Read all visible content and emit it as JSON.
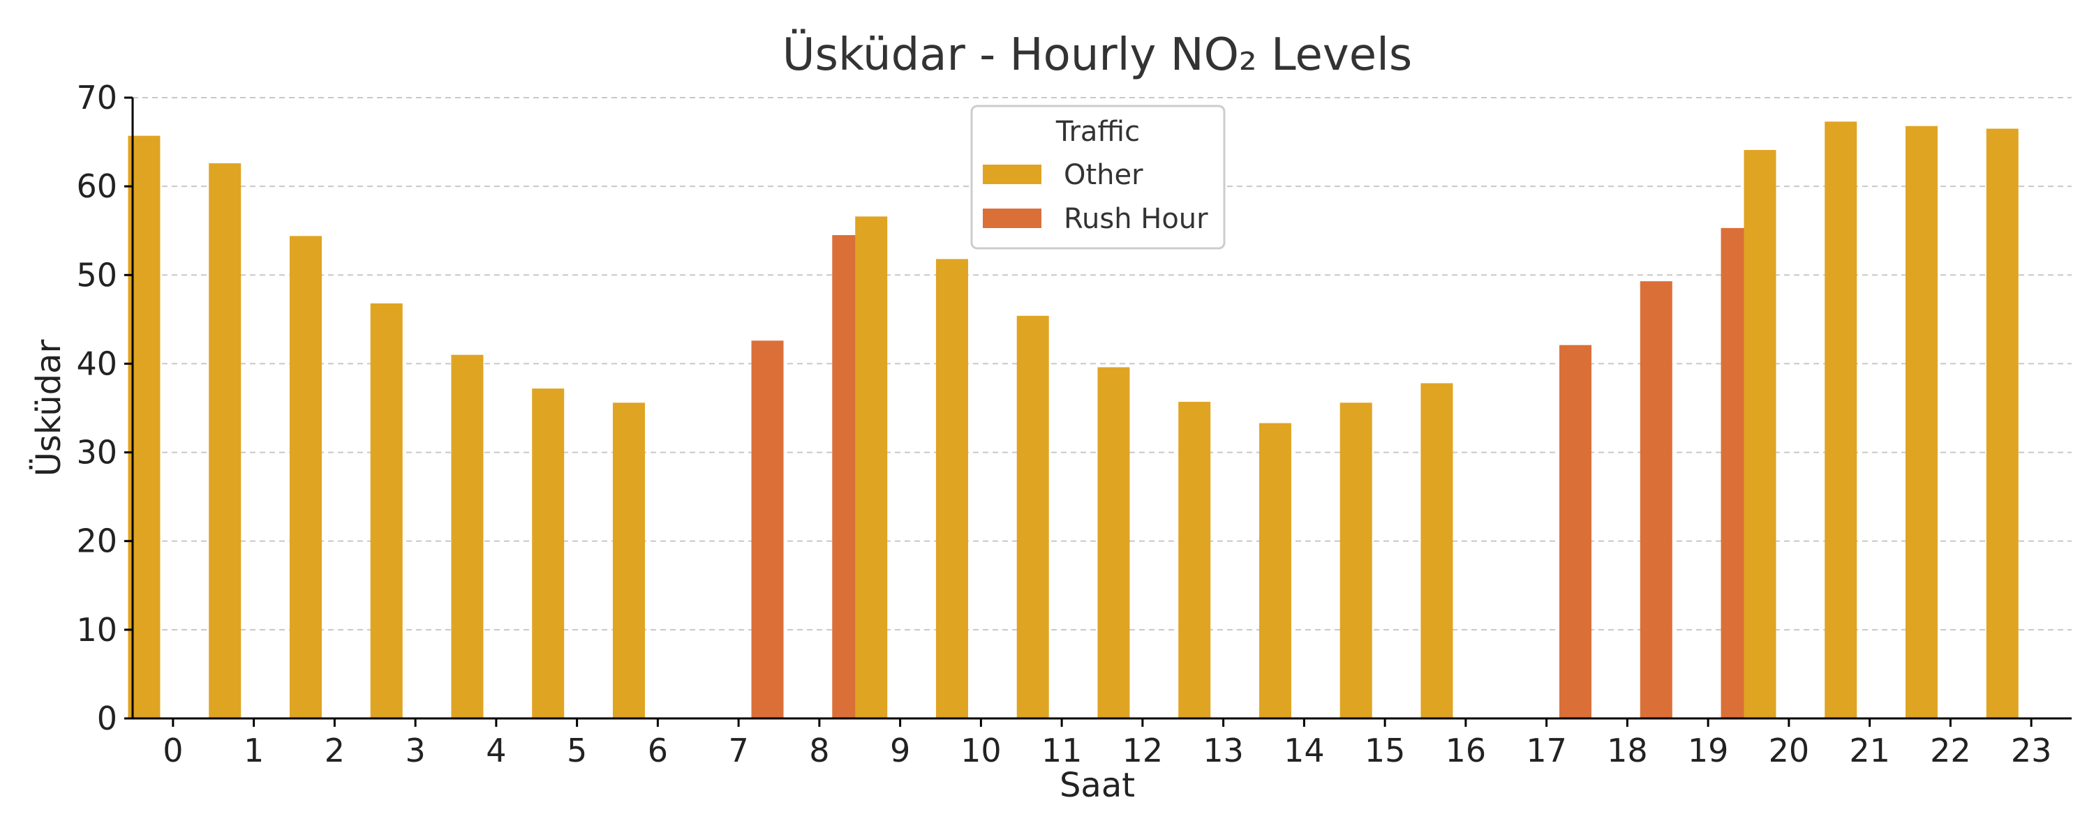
{
  "chart_data": {
    "type": "bar",
    "title": "Üsküdar - Hourly NO₂ Levels",
    "xlabel": "Saat",
    "ylabel": "Üsküdar",
    "ylim": [
      0,
      70
    ],
    "yticks": [
      0,
      10,
      20,
      30,
      40,
      50,
      60,
      70
    ],
    "grid": true,
    "legend_placement": "top-center",
    "categories": [
      "0",
      "1",
      "2",
      "3",
      "4",
      "5",
      "6",
      "7",
      "8",
      "9",
      "10",
      "11",
      "12",
      "13",
      "14",
      "15",
      "16",
      "17",
      "18",
      "19",
      "20",
      "21",
      "22",
      "23"
    ],
    "legend": {
      "title": "Traffic",
      "entries": [
        {
          "name": "Other",
          "color": "#E0A423"
        },
        {
          "name": "Rush Hour",
          "color": "#DB6F38"
        }
      ]
    },
    "series": [
      {
        "name": "Other",
        "color": "#E0A423",
        "values": [
          65.7,
          62.6,
          54.4,
          46.8,
          41.0,
          37.2,
          35.6,
          null,
          null,
          56.6,
          51.8,
          45.4,
          39.6,
          35.7,
          33.3,
          35.6,
          37.8,
          null,
          null,
          null,
          64.1,
          67.3,
          66.8,
          66.5
        ]
      },
      {
        "name": "Rush Hour",
        "color": "#DB6F38",
        "values": [
          null,
          null,
          null,
          null,
          null,
          null,
          null,
          42.6,
          54.5,
          null,
          null,
          null,
          null,
          null,
          null,
          null,
          null,
          42.1,
          49.3,
          55.3,
          null,
          null,
          null,
          null
        ]
      }
    ]
  }
}
